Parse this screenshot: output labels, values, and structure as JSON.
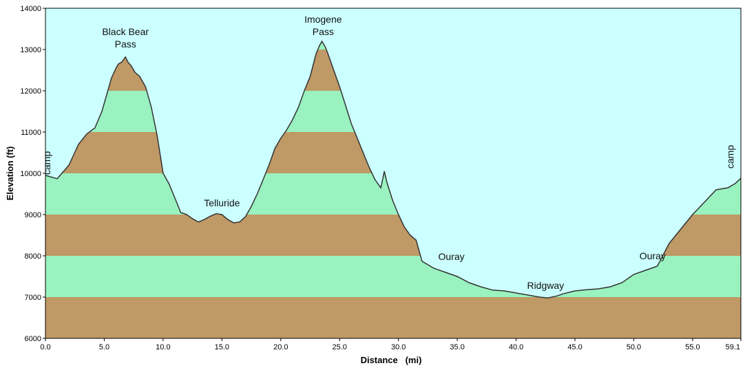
{
  "chart_data": {
    "type": "area",
    "title": "",
    "xlabel": "Distance   (mi)",
    "ylabel": "Elevation (ft)",
    "xlim": [
      0,
      59.1
    ],
    "ylim": [
      6000,
      14000
    ],
    "x_ticks": [
      0,
      5,
      10,
      15,
      20,
      25,
      30,
      35,
      40,
      45,
      50,
      55,
      59.1
    ],
    "x_tick_labels": [
      "0.0",
      "5.0",
      "10.0",
      "15.0",
      "20.0",
      "25.0",
      "30.0",
      "35.0",
      "40.0",
      "45.0",
      "50.0",
      "55.0",
      "59.1"
    ],
    "y_ticks": [
      6000,
      7000,
      8000,
      9000,
      10000,
      11000,
      12000,
      13000,
      14000
    ],
    "y_tick_labels": [
      "6000",
      "7000",
      "8000",
      "9000",
      "10000",
      "11000",
      "12000",
      "13000",
      "14000"
    ],
    "grid": false,
    "colors": {
      "sky": "#ccffff",
      "band_brown": "#bf9966",
      "band_green": "#99f2bf",
      "line": "#333333"
    },
    "band_size": 1000,
    "series": [
      {
        "x": [
          0.0,
          1.0,
          2.0,
          2.8,
          3.5,
          4.2,
          4.8,
          5.2,
          5.6,
          6.0,
          6.2,
          6.5,
          6.8,
          7.0,
          7.3,
          7.6,
          8.0,
          8.5,
          9.0,
          9.5,
          10.0,
          10.5,
          11.0,
          11.5,
          12.0,
          12.5,
          13.0,
          13.5,
          14.0,
          14.5,
          15.0,
          15.5,
          16.0,
          16.5,
          17.0,
          17.5,
          18.0,
          18.5,
          19.0,
          19.5,
          20.0,
          20.5,
          21.0,
          21.5,
          22.0,
          22.5,
          23.0,
          23.3,
          23.5,
          23.8,
          24.0,
          24.5,
          25.0,
          25.5,
          26.0,
          26.5,
          27.0,
          27.5,
          28.0,
          28.5,
          28.8,
          29.0,
          29.5,
          30.0,
          30.5,
          31.0,
          31.5,
          32.0,
          33.0,
          34.0,
          35.0,
          36.0,
          37.0,
          38.0,
          39.0,
          40.0,
          41.0,
          42.0,
          42.7,
          43.5,
          44.0,
          45.0,
          46.0,
          47.0,
          48.0,
          49.0,
          50.0,
          51.0,
          52.0,
          53.0,
          54.0,
          55.0,
          56.0,
          57.0,
          58.0,
          58.6,
          59.1
        ],
        "y": [
          9950,
          9870,
          10200,
          10700,
          10950,
          11100,
          11500,
          11900,
          12300,
          12550,
          12650,
          12700,
          12820,
          12700,
          12600,
          12450,
          12350,
          12100,
          11600,
          10900,
          10000,
          9750,
          9400,
          9050,
          9000,
          8900,
          8820,
          8880,
          8960,
          9020,
          9000,
          8880,
          8800,
          8820,
          8950,
          9200,
          9500,
          9850,
          10200,
          10600,
          10850,
          11050,
          11300,
          11600,
          12000,
          12350,
          12900,
          13100,
          13200,
          13050,
          12900,
          12500,
          12100,
          11650,
          11200,
          10850,
          10500,
          10150,
          9850,
          9650,
          10050,
          9800,
          9350,
          9000,
          8700,
          8500,
          8380,
          7870,
          7700,
          7600,
          7500,
          7350,
          7250,
          7170,
          7150,
          7100,
          7050,
          7000,
          6980,
          7030,
          7080,
          7150,
          7180,
          7200,
          7250,
          7350,
          7550,
          7650,
          7750,
          8300,
          8650,
          9000,
          9300,
          9600,
          9650,
          9750,
          9880
        ]
      }
    ],
    "annotations": [
      {
        "text": "camp",
        "x": 0.4,
        "y": 10250,
        "rotate": -90
      },
      {
        "text": "Black Bear",
        "x": 6.8,
        "y": 13350
      },
      {
        "text": "Pass",
        "x": 6.8,
        "y": 13050
      },
      {
        "text": "Telluride",
        "x": 15.0,
        "y": 9200
      },
      {
        "text": "Imogene",
        "x": 23.6,
        "y": 13650
      },
      {
        "text": "Pass",
        "x": 23.6,
        "y": 13350
      },
      {
        "text": "Ouray",
        "x": 34.5,
        "y": 7900
      },
      {
        "text": "Ridgway",
        "x": 42.5,
        "y": 7200
      },
      {
        "text": "Ouray",
        "x": 51.6,
        "y": 7920
      },
      {
        "text": "camp",
        "x": 58.5,
        "y": 10400,
        "rotate": -90
      }
    ]
  }
}
